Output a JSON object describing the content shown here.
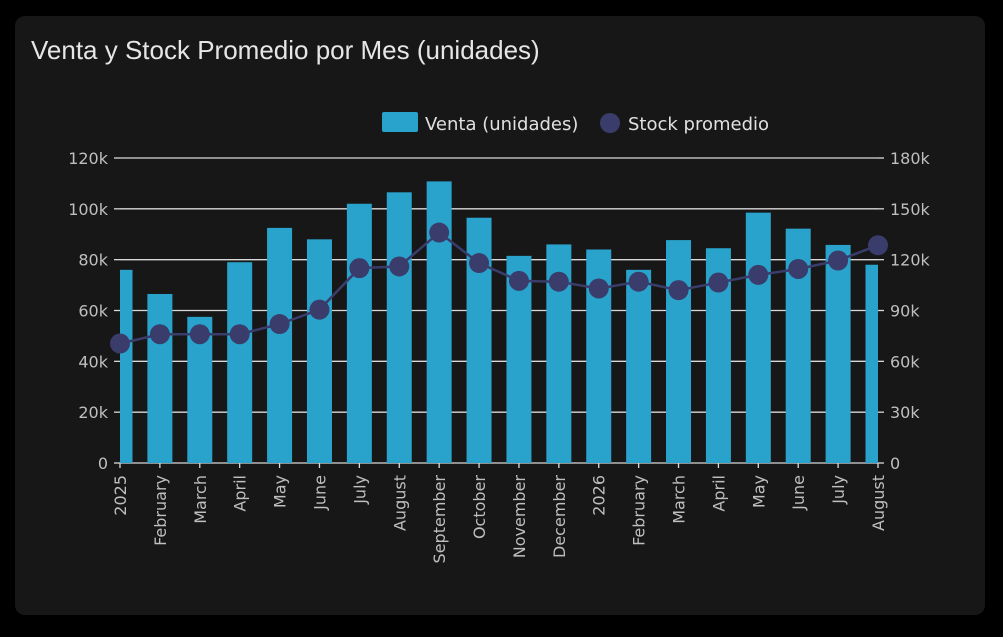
{
  "card": {
    "title": "Venta y Stock Promedio por Mes (unidades)"
  },
  "colors": {
    "bar": "#29a3cc",
    "line": "#3a3d6b",
    "grid": "#d9d9d9",
    "text": "#bfbfbf",
    "background": "#171717"
  },
  "chart_data": {
    "type": "bar",
    "title": "Venta y Stock Promedio por Mes (unidades)",
    "xlabel": "",
    "ylabel": "",
    "legend": {
      "position": "top",
      "entries": [
        {
          "name": "Venta (unidades)",
          "marker": "rect"
        },
        {
          "name": "Stock promedio",
          "marker": "circle"
        }
      ]
    },
    "grid": true,
    "categories": [
      "2025",
      "February",
      "March",
      "April",
      "May",
      "June",
      "July",
      "August",
      "September",
      "October",
      "November",
      "December",
      "2026",
      "February",
      "March",
      "April",
      "May",
      "June",
      "July",
      "August"
    ],
    "y_left": {
      "ylim": [
        0,
        120000
      ],
      "ticks": [
        0,
        20000,
        40000,
        60000,
        80000,
        100000,
        120000
      ],
      "tick_labels": [
        "0",
        "20k",
        "40k",
        "60k",
        "80k",
        "100k",
        "120k"
      ]
    },
    "y_right": {
      "ylim": [
        0,
        180000
      ],
      "ticks": [
        0,
        30000,
        60000,
        90000,
        120000,
        150000,
        180000
      ],
      "tick_labels": [
        "0",
        "30k",
        "60k",
        "90k",
        "120k",
        "150k",
        "180k"
      ]
    },
    "series": [
      {
        "name": "Venta (unidades)",
        "type": "bar",
        "axis": "left",
        "values": [
          76000,
          66500,
          57500,
          79000,
          92500,
          88000,
          102000,
          106500,
          110800,
          96500,
          81500,
          86000,
          84000,
          76000,
          87700,
          84500,
          98500,
          92200,
          85800,
          78000
        ]
      },
      {
        "name": "Stock promedio",
        "type": "line",
        "axis": "right",
        "values": [
          70500,
          76000,
          76000,
          76000,
          82000,
          90500,
          115000,
          116000,
          136000,
          118000,
          107500,
          107000,
          103000,
          107000,
          102000,
          106500,
          111000,
          114500,
          119500,
          128500
        ]
      }
    ]
  }
}
